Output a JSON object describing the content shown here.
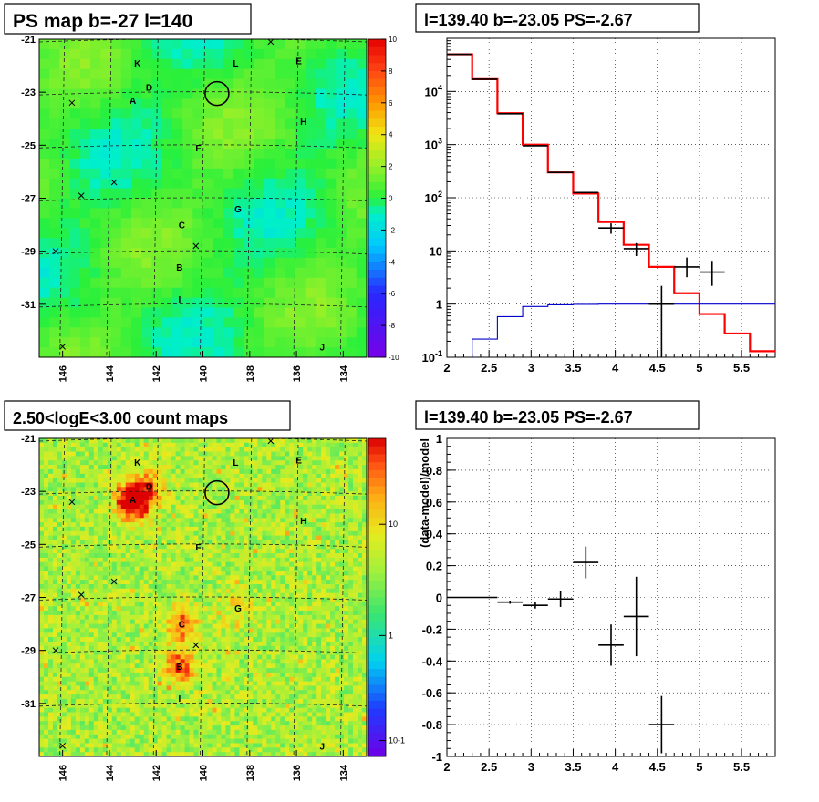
{
  "panels": {
    "tl": {
      "title": "PS map b=-27 l=140"
    },
    "tr": {
      "title": "l=139.40 b=-23.05 PS=-2.67"
    },
    "bl": {
      "title": "2.50<logE<3.00 count maps"
    },
    "br": {
      "title": "l=139.40 b=-23.05 PS=-2.67",
      "ylabel": "(data-model)/model"
    }
  },
  "map_axes": {
    "x_ticks": [
      "146",
      "144",
      "142",
      "140",
      "138",
      "136",
      "134"
    ],
    "y_ticks": [
      "-21",
      "-23",
      "-25",
      "-27",
      "-29",
      "-31"
    ]
  },
  "sources": [
    "K",
    "L",
    "E",
    "D",
    "A",
    "H",
    "F",
    "G",
    "C",
    "B",
    "I",
    "J"
  ],
  "colorbars": {
    "ps": {
      "ticks": [
        "10",
        "8",
        "6",
        "4",
        "2",
        "0",
        "-2",
        "-4",
        "-6",
        "-8",
        "-10"
      ]
    },
    "counts": {
      "ticks": [
        "10",
        "1",
        "10-1"
      ]
    }
  },
  "chart_data": [
    {
      "type": "heatmap",
      "title": "PS map b=-27 l=140",
      "xlim": [
        147,
        133
      ],
      "ylim": [
        -33,
        -21
      ],
      "colorbar_range": [
        -10,
        10
      ]
    },
    {
      "type": "line",
      "title": "l=139.40 b=-23.05 PS=-2.67",
      "xlim": [
        2,
        5.9
      ],
      "ylim": [
        0.1,
        100000
      ],
      "yscale": "log",
      "x_ticks": [
        "2",
        "2.5",
        "3",
        "3.5",
        "4",
        "4.5",
        "5",
        "5.5"
      ],
      "y_ticks": [
        "10^{-1}",
        "1",
        "10",
        "10^{2}",
        "10^{3}",
        "10^{4}"
      ],
      "grid": true,
      "series": [
        {
          "color": "#ff0000",
          "style": "step",
          "edges": [
            2.0,
            2.3,
            2.6,
            2.9,
            3.2,
            3.5,
            3.8,
            4.1,
            4.4,
            4.7,
            5.0,
            5.3,
            5.6,
            5.9
          ],
          "values": [
            50000,
            17000,
            3900,
            1000,
            300,
            120,
            35,
            13,
            5,
            1.6,
            0.65,
            0.28,
            0.13
          ]
        },
        {
          "color": "#0000cc",
          "style": "step",
          "edges": [
            2.0,
            2.3,
            2.6,
            2.9,
            3.2,
            3.5,
            3.8,
            4.1,
            4.4,
            4.7,
            5.0,
            5.3,
            5.6,
            5.9
          ],
          "values": [
            0.06,
            0.22,
            0.58,
            0.9,
            0.97,
            0.99,
            1.0,
            1.0,
            1.0,
            1.0,
            1.0,
            1.0,
            1.0
          ]
        },
        {
          "color": "#000000",
          "style": "points",
          "x": [
            2.15,
            2.45,
            2.75,
            3.05,
            3.35,
            3.65,
            3.95,
            4.25,
            4.55,
            4.85,
            5.15
          ],
          "y": [
            50000,
            17000,
            3800,
            950,
            300,
            125,
            27,
            11,
            1.0,
            5,
            4
          ],
          "ylo": [
            50000,
            17000,
            3800,
            950,
            300,
            125,
            21,
            8,
            0.1,
            3.2,
            2.2
          ],
          "yhi": [
            50000,
            17000,
            3800,
            950,
            300,
            125,
            33,
            14,
            2.2,
            7.5,
            6.5
          ]
        }
      ]
    },
    {
      "type": "heatmap",
      "title": "2.50<logE<3.00 count maps",
      "xlim": [
        147,
        133
      ],
      "ylim": [
        -33,
        -21
      ],
      "colorbar_scale": "log",
      "colorbar_range": [
        0.07,
        50
      ]
    },
    {
      "type": "scatter",
      "title": "l=139.40 b=-23.05 PS=-2.67",
      "ylabel": "(data-model)/model",
      "xlim": [
        2,
        5.9
      ],
      "ylim": [
        -1,
        1
      ],
      "x_ticks": [
        "2",
        "2.5",
        "3",
        "3.5",
        "4",
        "4.5",
        "5",
        "5.5"
      ],
      "y_ticks": [
        "-1",
        "-0.8",
        "-0.6",
        "-0.4",
        "-0.2",
        "0",
        "0.2",
        "0.4",
        "0.6",
        "0.8",
        "1"
      ],
      "grid": true,
      "series": [
        {
          "color": "#000000",
          "x": [
            2.15,
            2.45,
            2.75,
            3.05,
            3.35,
            3.65,
            3.95,
            4.25,
            4.55
          ],
          "y": [
            0.0,
            0.0,
            -0.03,
            -0.05,
            -0.01,
            0.22,
            -0.3,
            -0.12,
            -0.8
          ],
          "err": [
            0.0,
            0.0,
            0.01,
            0.02,
            0.05,
            0.1,
            0.13,
            0.25,
            0.18
          ]
        }
      ]
    }
  ]
}
